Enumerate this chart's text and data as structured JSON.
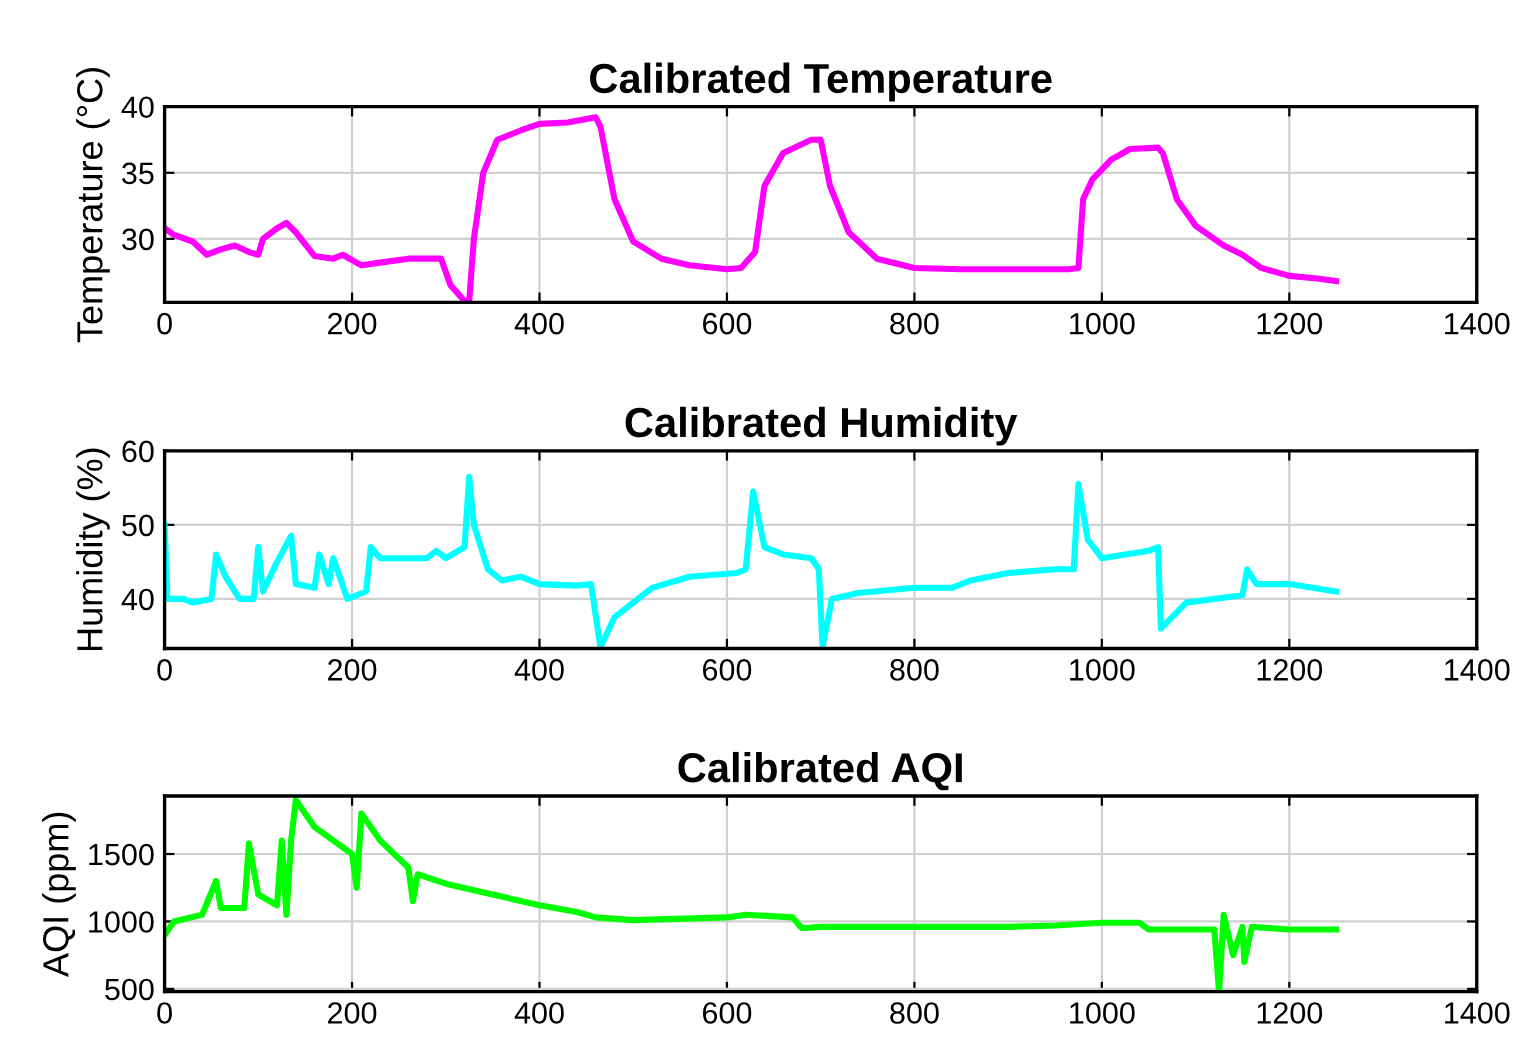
{
  "chart_data": [
    {
      "type": "line",
      "title": "Calibrated Temperature",
      "ylabel": "Temperature (°C)",
      "xlim": [
        0,
        1400
      ],
      "xticks": [
        0,
        200,
        400,
        600,
        800,
        1000,
        1200,
        1400
      ],
      "ylim": [
        25.2,
        40
      ],
      "yticks": [
        30,
        35,
        40
      ],
      "grid": true,
      "x": [
        0,
        10,
        30,
        45,
        60,
        75,
        90,
        100,
        105,
        120,
        130,
        140,
        160,
        180,
        190,
        210,
        230,
        260,
        295,
        305,
        320,
        325,
        330,
        340,
        355,
        380,
        400,
        430,
        460,
        465,
        480,
        500,
        530,
        560,
        600,
        615,
        625,
        630,
        640,
        660,
        690,
        700,
        710,
        730,
        760,
        800,
        850,
        900,
        965,
        975,
        980,
        990,
        1010,
        1030,
        1060,
        1065,
        1080,
        1100,
        1130,
        1150,
        1170,
        1200,
        1230,
        1250
      ],
      "series": [
        {
          "color": "#ff00ff",
          "values": [
            30.8,
            30.3,
            29.8,
            28.8,
            29.2,
            29.5,
            29.0,
            28.8,
            30.0,
            30.8,
            31.2,
            30.5,
            28.7,
            28.5,
            28.8,
            28.0,
            28.2,
            28.5,
            28.5,
            26.5,
            25.3,
            25.3,
            30,
            35,
            37.5,
            38.2,
            38.7,
            38.8,
            39.2,
            38.5,
            33,
            29.8,
            28.5,
            28.0,
            27.7,
            27.8,
            28.6,
            29,
            34,
            36.5,
            37.5,
            37.5,
            34,
            30.5,
            28.5,
            27.8,
            27.7,
            27.7,
            27.7,
            27.8,
            33,
            34.5,
            36,
            36.8,
            36.9,
            36.5,
            33,
            31,
            29.5,
            28.8,
            27.8,
            27.2,
            27.0,
            26.8
          ]
        }
      ]
    },
    {
      "type": "line",
      "title": "Calibrated Humidity",
      "ylabel": "Humidity (%)",
      "xlim": [
        0,
        1400
      ],
      "xticks": [
        0,
        200,
        400,
        600,
        800,
        1000,
        1200,
        1400
      ],
      "ylim": [
        33.3,
        60
      ],
      "yticks": [
        40,
        50,
        60
      ],
      "grid": true,
      "x": [
        0,
        3,
        20,
        30,
        50,
        55,
        65,
        80,
        95,
        100,
        105,
        120,
        135,
        140,
        160,
        165,
        175,
        180,
        195,
        215,
        220,
        230,
        280,
        290,
        300,
        320,
        325,
        330,
        345,
        360,
        380,
        400,
        440,
        455,
        465,
        480,
        520,
        560,
        610,
        620,
        628,
        640,
        660,
        690,
        698,
        702,
        712,
        740,
        800,
        840,
        860,
        900,
        950,
        970,
        975,
        985,
        1000,
        1050,
        1060,
        1063,
        1090,
        1150,
        1155,
        1165,
        1200,
        1250
      ],
      "series": [
        {
          "color": "#00ffff",
          "values": [
            50,
            40,
            40,
            39.5,
            40,
            46,
            43,
            40,
            40,
            47,
            41,
            45,
            48.5,
            42,
            41.5,
            46,
            42,
            45.5,
            40,
            41,
            47,
            45.5,
            45.5,
            46.5,
            45.5,
            47,
            56.5,
            50,
            44,
            42.5,
            43,
            42,
            41.8,
            42,
            33.5,
            37.5,
            41.5,
            43,
            43.5,
            44,
            54.5,
            47,
            46,
            45.5,
            44,
            33.5,
            40,
            40.8,
            41.5,
            41.5,
            42.5,
            43.5,
            44,
            44,
            55.5,
            48,
            45.5,
            46.5,
            47,
            36,
            39.5,
            40.5,
            44,
            42,
            42,
            41
          ]
        }
      ]
    },
    {
      "type": "line",
      "title": "Calibrated AQI",
      "ylabel": "AQI (ppm)",
      "xlim": [
        0,
        1400
      ],
      "xticks": [
        0,
        200,
        400,
        600,
        800,
        1000,
        1200,
        1400
      ],
      "ylim": [
        480,
        1930
      ],
      "yticks": [
        500,
        1000,
        1500
      ],
      "grid": true,
      "x": [
        0,
        10,
        40,
        55,
        60,
        85,
        90,
        100,
        120,
        125,
        130,
        135,
        140,
        160,
        200,
        205,
        210,
        230,
        260,
        265,
        270,
        300,
        350,
        400,
        440,
        460,
        500,
        600,
        620,
        670,
        680,
        700,
        800,
        900,
        950,
        1000,
        1040,
        1050,
        1120,
        1125,
        1130,
        1140,
        1150,
        1152,
        1160,
        1200,
        1250
      ],
      "series": [
        {
          "color": "#00ff00",
          "values": [
            900,
            1000,
            1050,
            1300,
            1100,
            1100,
            1580,
            1200,
            1120,
            1600,
            1050,
            1600,
            1900,
            1700,
            1500,
            1250,
            1800,
            1600,
            1400,
            1150,
            1350,
            1280,
            1200,
            1120,
            1070,
            1030,
            1010,
            1030,
            1050,
            1030,
            950,
            960,
            960,
            960,
            970,
            990,
            990,
            940,
            940,
            480,
            1050,
            750,
            960,
            700,
            960,
            940,
            940
          ]
        }
      ]
    }
  ]
}
